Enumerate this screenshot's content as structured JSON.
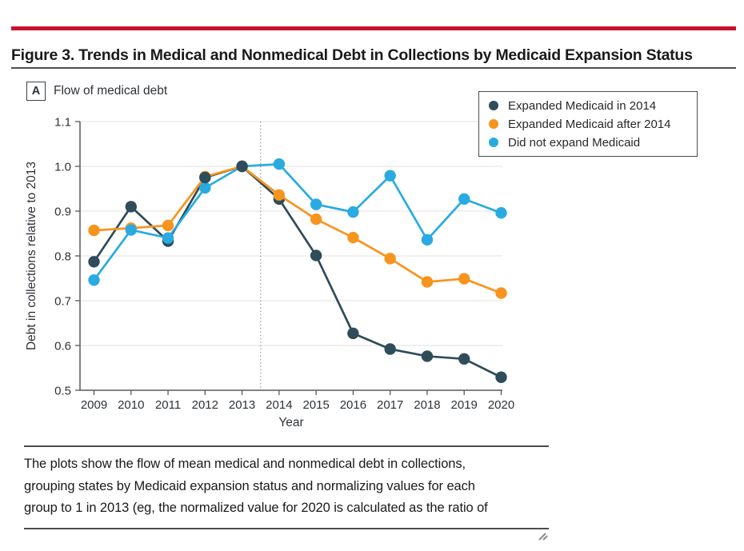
{
  "header": {
    "title": "Figure 3. Trends in Medical and Nonmedical Debt in Collections by Medicaid Expansion Status"
  },
  "panel": {
    "label": "A",
    "title": "Flow of medical debt"
  },
  "chart_data": {
    "type": "line",
    "x": [
      2009,
      2010,
      2011,
      2012,
      2013,
      2014,
      2015,
      2016,
      2017,
      2018,
      2019,
      2020
    ],
    "xlabel": "Year",
    "ylabel": "Debt in collections relative to 2013",
    "ylim": [
      0.5,
      1.1
    ],
    "yticks": [
      0.5,
      0.6,
      0.7,
      0.8,
      0.9,
      1.0,
      1.1
    ],
    "grid": true,
    "reference_line_x": 2013.5,
    "legend_position": "top-right",
    "series": [
      {
        "name": "Expanded Medicaid in 2014",
        "color": "#2E4C59",
        "values": [
          0.787,
          0.91,
          0.833,
          0.975,
          1.0,
          0.927,
          0.801,
          0.627,
          0.592,
          0.576,
          0.57,
          0.529
        ]
      },
      {
        "name": "Expanded Medicaid after 2014",
        "color": "#F7941E",
        "values": [
          0.857,
          0.862,
          0.868,
          0.977,
          1.0,
          0.936,
          0.882,
          0.841,
          0.794,
          0.742,
          0.749,
          0.717
        ]
      },
      {
        "name": "Did not expand Medicaid",
        "color": "#29ABE2",
        "values": [
          0.746,
          0.858,
          0.84,
          0.952,
          1.0,
          1.005,
          0.915,
          0.898,
          0.979,
          0.836,
          0.927,
          0.896
        ]
      }
    ]
  },
  "footnote": {
    "lines": [
      "The plots show the flow of mean medical and nonmedical debt in collections,",
      "grouping states by Medicaid expansion status and normalizing values for each",
      "group to 1 in 2013 (eg, the normalized value for 2020 is calculated as the ratio of"
    ]
  },
  "icons": {
    "resize_handle": "resize-grip"
  },
  "colors": {
    "accent_red": "#C8102E",
    "rule_gray": "#4D4D4D",
    "axis_gray": "#58595B",
    "grid_gray": "#E7E7E7",
    "ref_line_gray": "#9B9B9B",
    "ink": "#1A1A1A",
    "label_ink": "#2E3338"
  }
}
